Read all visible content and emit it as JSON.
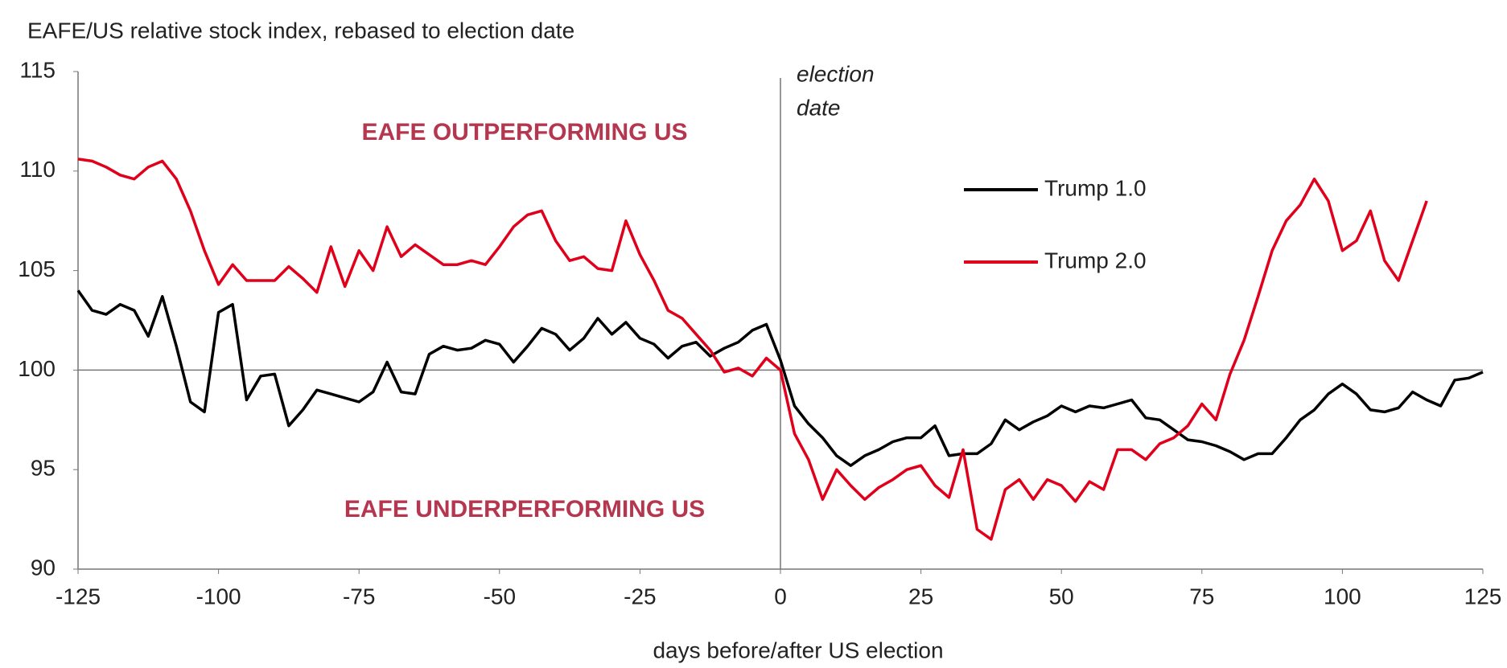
{
  "chart_data": {
    "type": "line",
    "title": "EAFE/US relative stock index, rebased to election date",
    "x_label": "days before/after US election",
    "region_labels": [
      "EAFE OUTPERFORMING US",
      "EAFE UNDERPERFORMING US"
    ],
    "vline_label": [
      "election",
      "date"
    ],
    "vline_x": 0,
    "hline_y": 100,
    "x": [
      -125,
      -122.5,
      -120,
      -117.5,
      -115,
      -112.5,
      -110,
      -107.5,
      -105,
      -102.5,
      -100,
      -97.5,
      -95,
      -92.5,
      -90,
      -87.5,
      -85,
      -82.5,
      -80,
      -77.5,
      -75,
      -72.5,
      -70,
      -67.5,
      -65,
      -62.5,
      -60,
      -57.5,
      -55,
      -52.5,
      -50,
      -47.5,
      -45,
      -42.5,
      -40,
      -37.5,
      -35,
      -32.5,
      -30,
      -27.5,
      -25,
      -22.5,
      -20,
      -17.5,
      -15,
      -12.5,
      -10,
      -7.5,
      -5,
      -2.5,
      0,
      2.5,
      5,
      7.5,
      10,
      12.5,
      15,
      17.5,
      20,
      22.5,
      25,
      27.5,
      30,
      32.5,
      35,
      37.5,
      40,
      42.5,
      45,
      47.5,
      50,
      52.5,
      55,
      57.5,
      60,
      62.5,
      65,
      67.5,
      70,
      72.5,
      75,
      77.5,
      80,
      82.5,
      85,
      87.5,
      90,
      92.5,
      95,
      97.5,
      100,
      102.5,
      105,
      107.5,
      110,
      112.5,
      115,
      117.5,
      120,
      122.5,
      125
    ],
    "series": [
      {
        "name": "Trump 1.0",
        "color": "#000000",
        "values": [
          104.0,
          103.0,
          102.8,
          103.3,
          103.0,
          101.7,
          103.7,
          101.2,
          98.4,
          97.9,
          102.9,
          103.3,
          98.5,
          99.7,
          99.8,
          97.2,
          98.0,
          99.0,
          98.8,
          98.6,
          98.4,
          98.9,
          100.4,
          98.9,
          98.8,
          100.8,
          101.2,
          101.0,
          101.1,
          101.5,
          101.3,
          100.4,
          101.2,
          102.1,
          101.8,
          101.0,
          101.6,
          102.6,
          101.8,
          102.4,
          101.6,
          101.3,
          100.6,
          101.2,
          101.4,
          100.7,
          101.1,
          101.4,
          102.0,
          102.3,
          100.5,
          98.2,
          97.3,
          96.6,
          95.7,
          95.2,
          95.7,
          96.0,
          96.4,
          96.6,
          96.6,
          97.2,
          95.7,
          95.8,
          95.8,
          96.3,
          97.5,
          97.0,
          97.4,
          97.7,
          98.2,
          97.9,
          98.2,
          98.1,
          98.3,
          98.5,
          97.6,
          97.5,
          97.0,
          96.5,
          96.4,
          96.2,
          95.9,
          95.5,
          95.8,
          95.8,
          96.6,
          97.5,
          98.0,
          98.8,
          99.3,
          98.8,
          98.0,
          97.9,
          98.1,
          98.9,
          98.5,
          98.2,
          99.5,
          99.6,
          99.9
        ]
      },
      {
        "name": "Trump 2.0",
        "color": "#e0001b",
        "values": [
          110.6,
          110.5,
          110.2,
          109.8,
          109.6,
          110.2,
          110.5,
          109.6,
          108.0,
          106.0,
          104.3,
          105.3,
          104.5,
          104.5,
          104.5,
          105.2,
          104.6,
          103.9,
          106.2,
          104.2,
          106.0,
          105.0,
          107.2,
          105.7,
          106.3,
          105.8,
          105.3,
          105.3,
          105.5,
          105.3,
          106.2,
          107.2,
          107.8,
          108.0,
          106.5,
          105.5,
          105.7,
          105.1,
          105.0,
          107.5,
          105.8,
          104.5,
          103.0,
          102.6,
          101.8,
          101.0,
          99.9,
          100.1,
          99.7,
          100.6,
          100.0,
          96.8,
          95.5,
          93.5,
          95.0,
          94.2,
          93.5,
          94.1,
          94.5,
          95.0,
          95.2,
          94.2,
          93.6,
          96.0,
          92.0,
          91.5,
          94.0,
          94.5,
          93.5,
          94.5,
          94.2,
          93.4,
          94.4,
          94.0,
          96.0,
          96.0,
          95.5,
          96.3,
          96.6,
          97.2,
          98.3,
          97.5,
          99.8,
          101.5,
          103.7,
          106.0,
          107.5,
          108.3,
          109.6,
          108.5,
          106.0,
          106.5,
          108.0,
          105.5,
          104.5,
          106.5,
          108.5,
          null,
          null,
          null,
          null
        ]
      }
    ],
    "xlim": [
      -125,
      125
    ],
    "ylim": [
      90,
      115
    ],
    "xticks": [
      -125,
      -100,
      -75,
      -50,
      -25,
      0,
      25,
      50,
      75,
      100,
      125
    ],
    "yticks": [
      90,
      95,
      100,
      105,
      110,
      115
    ]
  }
}
